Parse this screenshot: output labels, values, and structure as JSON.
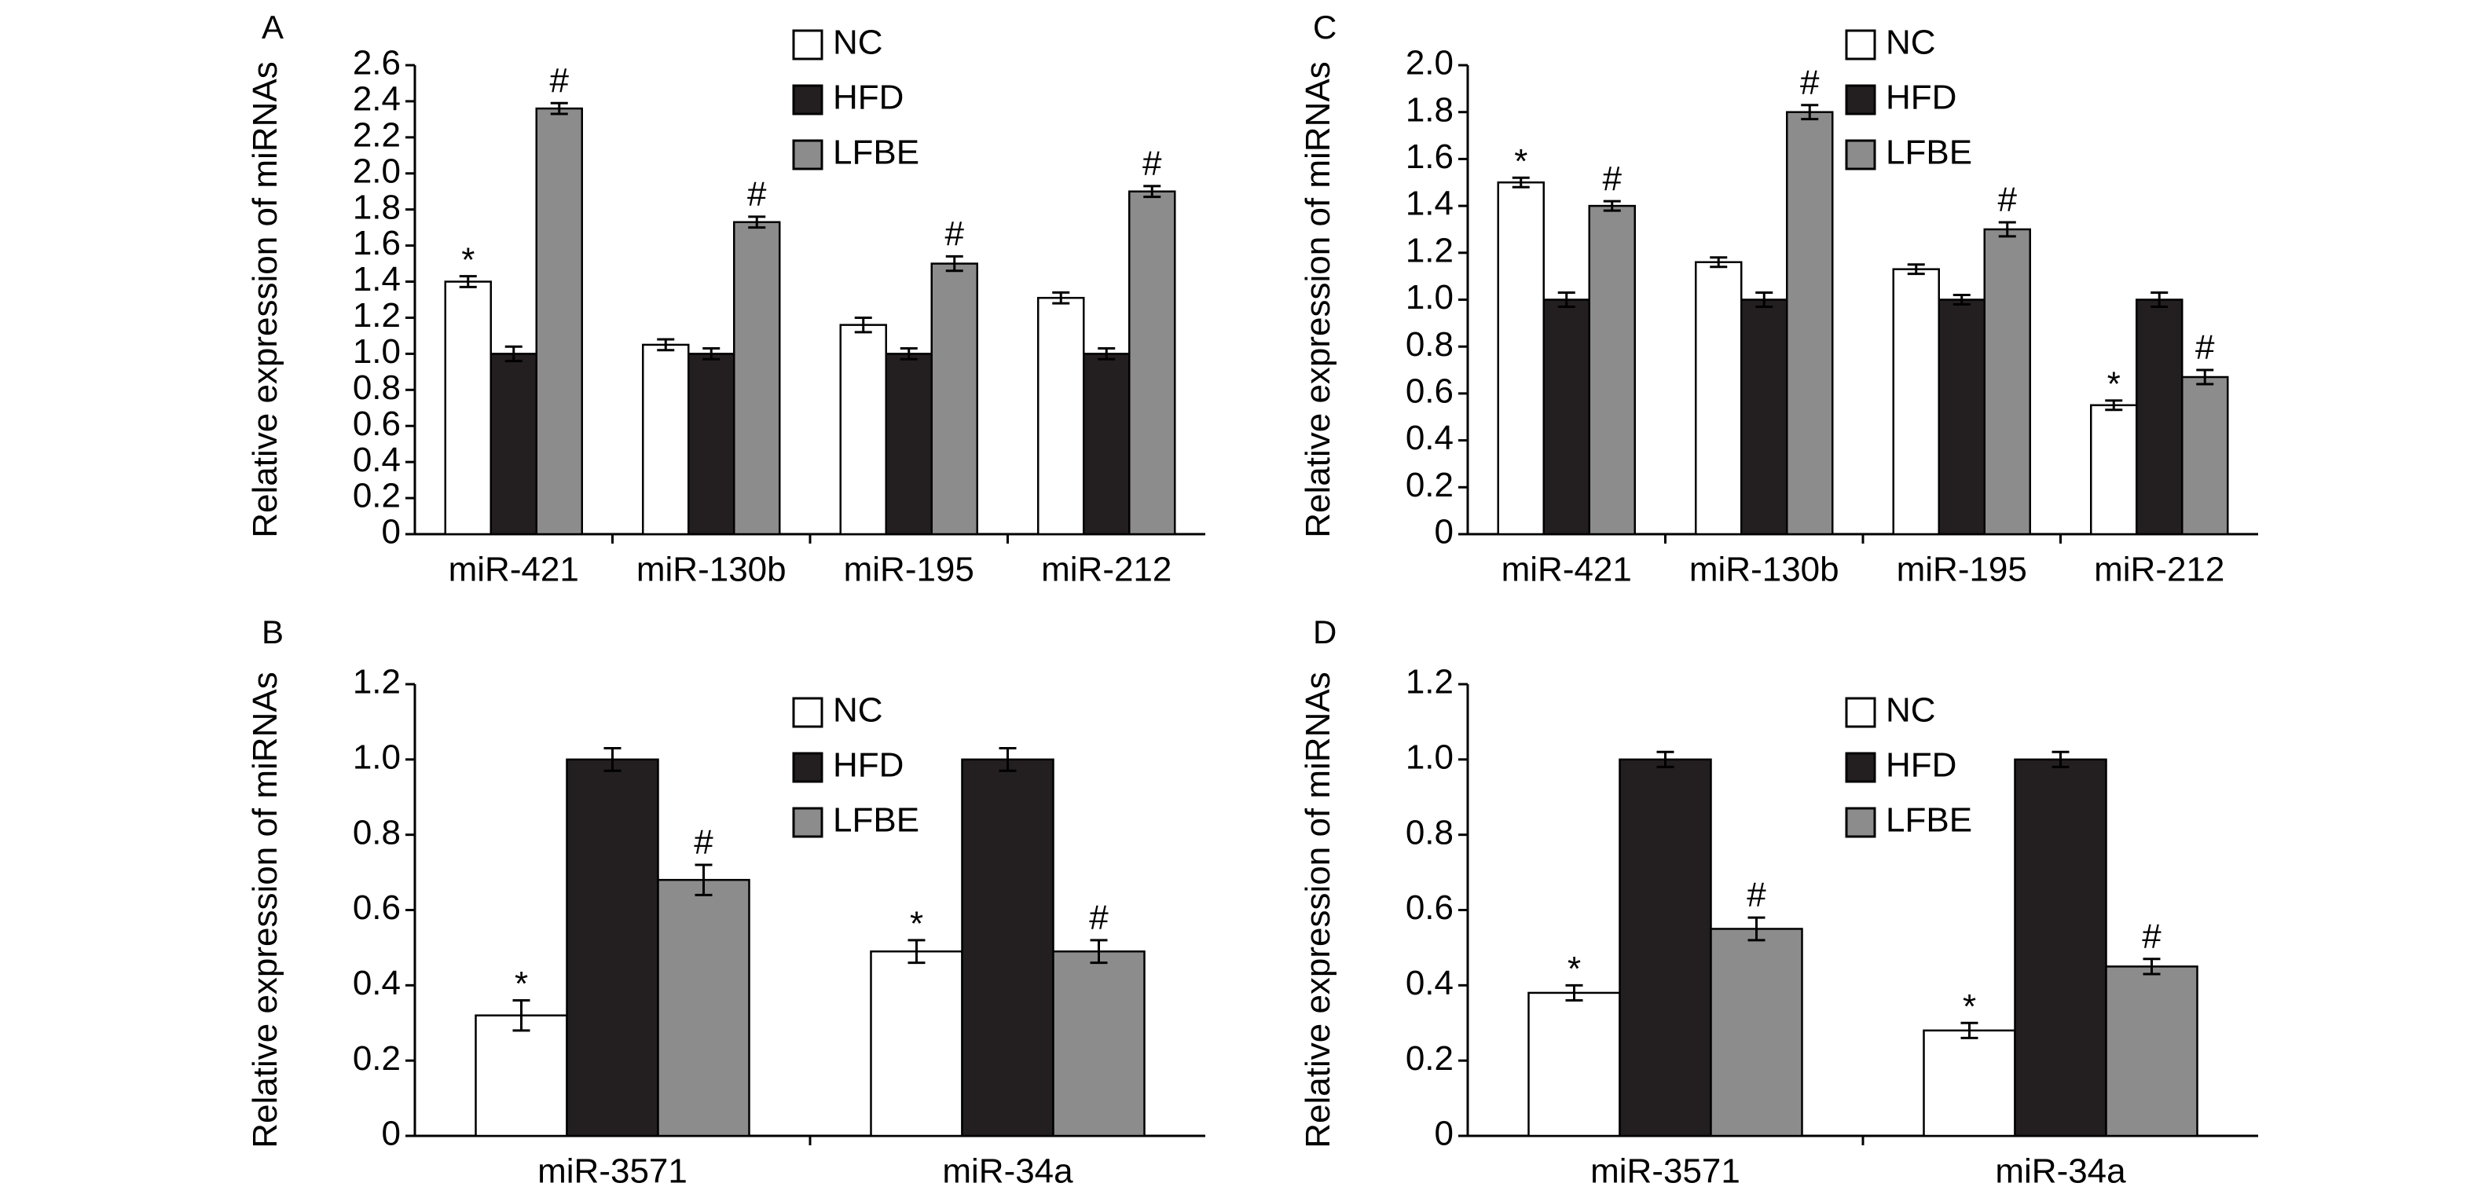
{
  "legend": [
    "NC",
    "HFD",
    "LFBE"
  ],
  "colors": {
    "NC": "#ffffff",
    "HFD": "#231f20",
    "LFBE": "#8c8c8c"
  },
  "chart_data": [
    {
      "panel": "A",
      "type": "bar",
      "ylabel": "Relative expression of miRNAs",
      "ylim": [
        0,
        2.6
      ],
      "yticks": [
        "0",
        "0.2",
        "0.4",
        "0.6",
        "0.8",
        "1.0",
        "1.2",
        "1.4",
        "1.6",
        "1.8",
        "2.0",
        "2.2",
        "2.4",
        "2.6"
      ],
      "categories": [
        "miR-421",
        "miR-130b",
        "miR-195",
        "miR-212"
      ],
      "legend_position": "top-center",
      "series": [
        {
          "name": "NC",
          "values": [
            1.4,
            1.05,
            1.16,
            1.31
          ],
          "errors": [
            0.03,
            0.03,
            0.04,
            0.03
          ],
          "marks": [
            "*",
            "",
            "",
            ""
          ]
        },
        {
          "name": "HFD",
          "values": [
            1.0,
            1.0,
            1.0,
            1.0
          ],
          "errors": [
            0.04,
            0.03,
            0.03,
            0.03
          ],
          "marks": [
            "",
            "",
            "",
            ""
          ]
        },
        {
          "name": "LFBE",
          "values": [
            2.36,
            1.73,
            1.5,
            1.9
          ],
          "errors": [
            0.03,
            0.03,
            0.04,
            0.03
          ],
          "marks": [
            "#",
            "#",
            "#",
            "#"
          ]
        }
      ]
    },
    {
      "panel": "B",
      "type": "bar",
      "ylabel": "Relative expression of miRNAs",
      "ylim": [
        0,
        1.2
      ],
      "yticks": [
        "0",
        "0.2",
        "0.4",
        "0.6",
        "0.8",
        "1.0",
        "1.2"
      ],
      "categories": [
        "miR-3571",
        "miR-34a"
      ],
      "legend_position": "top-center",
      "series": [
        {
          "name": "NC",
          "values": [
            0.32,
            0.49
          ],
          "errors": [
            0.04,
            0.03
          ],
          "marks": [
            "*",
            "*"
          ]
        },
        {
          "name": "HFD",
          "values": [
            1.0,
            1.0
          ],
          "errors": [
            0.03,
            0.03
          ],
          "marks": [
            "",
            ""
          ]
        },
        {
          "name": "LFBE",
          "values": [
            0.68,
            0.49
          ],
          "errors": [
            0.04,
            0.03
          ],
          "marks": [
            "#",
            "#"
          ]
        }
      ]
    },
    {
      "panel": "C",
      "type": "bar",
      "ylabel": "Relative expression of miRNAs",
      "ylim": [
        0,
        2.0
      ],
      "yticks": [
        "0",
        "0.2",
        "0.4",
        "0.6",
        "0.8",
        "1.0",
        "1.2",
        "1.4",
        "1.6",
        "1.8",
        "2.0"
      ],
      "categories": [
        "miR-421",
        "miR-130b",
        "miR-195",
        "miR-212"
      ],
      "legend_position": "top-center",
      "series": [
        {
          "name": "NC",
          "values": [
            1.5,
            1.16,
            1.13,
            0.55
          ],
          "errors": [
            0.02,
            0.02,
            0.02,
            0.02
          ],
          "marks": [
            "*",
            "",
            "",
            "*"
          ]
        },
        {
          "name": "HFD",
          "values": [
            1.0,
            1.0,
            1.0,
            1.0
          ],
          "errors": [
            0.03,
            0.03,
            0.02,
            0.03
          ],
          "marks": [
            "",
            "",
            "",
            ""
          ]
        },
        {
          "name": "LFBE",
          "values": [
            1.4,
            1.8,
            1.3,
            0.67
          ],
          "errors": [
            0.02,
            0.03,
            0.03,
            0.03
          ],
          "marks": [
            "#",
            "#",
            "#",
            "#"
          ]
        }
      ]
    },
    {
      "panel": "D",
      "type": "bar",
      "ylabel": "Relative expression of miRNAs",
      "ylim": [
        0,
        1.2
      ],
      "yticks": [
        "0",
        "0.2",
        "0.4",
        "0.6",
        "0.8",
        "1.0",
        "1.2"
      ],
      "categories": [
        "miR-3571",
        "miR-34a"
      ],
      "legend_position": "top-center",
      "series": [
        {
          "name": "NC",
          "values": [
            0.38,
            0.28
          ],
          "errors": [
            0.02,
            0.02
          ],
          "marks": [
            "*",
            "*"
          ]
        },
        {
          "name": "HFD",
          "values": [
            1.0,
            1.0
          ],
          "errors": [
            0.02,
            0.02
          ],
          "marks": [
            "",
            ""
          ]
        },
        {
          "name": "LFBE",
          "values": [
            0.55,
            0.45
          ],
          "errors": [
            0.03,
            0.02
          ],
          "marks": [
            "#",
            "#"
          ]
        }
      ]
    }
  ]
}
